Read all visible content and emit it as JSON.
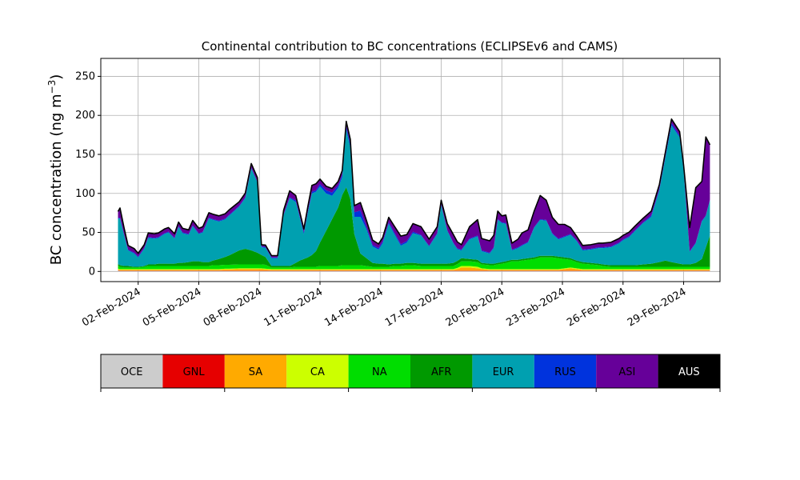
{
  "chart_data": {
    "type": "area",
    "stacked": true,
    "title": "Continental contribution to BC concentrations (ECLIPSEv6 and CAMS)",
    "xlabel": "",
    "ylabel_prefix": "BC concentration (ng m",
    "ylabel_sup": "−3",
    "ylabel_suffix": ")",
    "x_unit": "days since 01-Feb-2024 00:00",
    "xlim": [
      -0.85,
      29.8
    ],
    "ylim": [
      -13,
      273
    ],
    "grid": true,
    "yticks": [
      0,
      50,
      100,
      150,
      200,
      250
    ],
    "xticks": [
      {
        "day": 1,
        "label": "02-Feb-2024"
      },
      {
        "day": 4,
        "label": "05-Feb-2024"
      },
      {
        "day": 7,
        "label": "08-Feb-2024"
      },
      {
        "day": 10,
        "label": "11-Feb-2024"
      },
      {
        "day": 13,
        "label": "14-Feb-2024"
      },
      {
        "day": 16,
        "label": "17-Feb-2024"
      },
      {
        "day": 19,
        "label": "20-Feb-2024"
      },
      {
        "day": 22,
        "label": "23-Feb-2024"
      },
      {
        "day": 25,
        "label": "26-Feb-2024"
      },
      {
        "day": 28,
        "label": "29-Feb-2024"
      }
    ],
    "total_curve_color": "#000000",
    "x": [
      0.0,
      0.1,
      0.3,
      0.5,
      0.8,
      1.0,
      1.3,
      1.5,
      1.8,
      2.0,
      2.3,
      2.5,
      2.8,
      3.0,
      3.2,
      3.5,
      3.7,
      4.0,
      4.2,
      4.5,
      4.7,
      5.0,
      5.3,
      5.5,
      6.0,
      6.3,
      6.6,
      6.9,
      7.1,
      7.3,
      7.6,
      7.9,
      8.2,
      8.5,
      8.8,
      9.0,
      9.2,
      9.4,
      9.6,
      9.8,
      10.0,
      10.3,
      10.6,
      10.9,
      11.1,
      11.3,
      11.5,
      11.7,
      12.0,
      12.3,
      12.6,
      12.9,
      13.1,
      13.4,
      13.7,
      14.0,
      14.3,
      14.6,
      15.0,
      15.4,
      15.8,
      16.0,
      16.3,
      16.6,
      16.8,
      17.0,
      17.4,
      17.8,
      18.0,
      18.4,
      18.6,
      18.8,
      19.0,
      19.2,
      19.5,
      19.8,
      20.0,
      20.3,
      20.6,
      20.9,
      21.2,
      21.5,
      21.8,
      22.1,
      22.4,
      22.7,
      23.0,
      23.4,
      23.8,
      24.0,
      24.4,
      24.8,
      25.0,
      25.3,
      25.6,
      26.0,
      26.4,
      26.8,
      27.1,
      27.4,
      27.8,
      28.0,
      28.3,
      28.6,
      28.9,
      29.1,
      29.3
    ],
    "series": [
      {
        "name": "OCE",
        "color": "#cccccc",
        "values": [
          1,
          0.5,
          0.5,
          0.5,
          0.5,
          0.5,
          0.5,
          0.5,
          0.5,
          0.5,
          0.5,
          0.5,
          0.5,
          0.5,
          0.5,
          0.5,
          0.5,
          0.5,
          0.5,
          0.5,
          0.5,
          0.5,
          0.5,
          0.5,
          0.5,
          0.5,
          0.5,
          0.5,
          0.5,
          0.5,
          0.5,
          0.5,
          0.5,
          0.5,
          0.5,
          0.5,
          0.5,
          0.5,
          0.5,
          0.5,
          0.5,
          0.5,
          0.5,
          0.5,
          0.5,
          0.5,
          0.5,
          0.5,
          0.5,
          0.5,
          0.5,
          0.5,
          0.5,
          0.5,
          0.5,
          0.5,
          0.5,
          0.5,
          0.5,
          0.5,
          0.5,
          0.5,
          0.5,
          0.5,
          0.5,
          0.5,
          0.5,
          0.5,
          0.5,
          0.5,
          0.5,
          0.5,
          0.5,
          0.5,
          0.5,
          0.5,
          0.5,
          0.5,
          0.5,
          0.5,
          0.5,
          0.5,
          0.5,
          0.5,
          0.5,
          0.5,
          0.5,
          0.5,
          0.5,
          0.5,
          0.5,
          0.5,
          0.5,
          0.5,
          0.5,
          0.5,
          0.5,
          0.5,
          0.5,
          0.5,
          0.5,
          0.5,
          0.5,
          0.5,
          0.5,
          0.5,
          0.5
        ]
      },
      {
        "name": "GNL",
        "color": "#e60000",
        "values": [
          0.5,
          0.5,
          0.5,
          0.5,
          0.5,
          0.5,
          0.5,
          0.5,
          0.5,
          0.5,
          0.5,
          0.5,
          0.5,
          0.5,
          0.5,
          0.5,
          0.5,
          0.5,
          0.5,
          0.5,
          0.5,
          0.5,
          0.5,
          0.5,
          0.5,
          0.5,
          0.5,
          0.5,
          0.5,
          0.5,
          0.5,
          0.5,
          0.5,
          0.5,
          0.5,
          0.5,
          0.5,
          0.5,
          0.5,
          0.5,
          0.5,
          0.5,
          0.5,
          0.5,
          0.5,
          0.5,
          0.5,
          0.5,
          0.5,
          0.5,
          0.5,
          0.5,
          0.5,
          0.5,
          0.5,
          0.5,
          0.5,
          0.5,
          0.5,
          0.5,
          0.5,
          0.5,
          0.5,
          0.5,
          0.5,
          0.5,
          0.5,
          0.5,
          0.5,
          0.5,
          0.5,
          0.5,
          0.5,
          0.5,
          0.5,
          0.5,
          0.5,
          0.5,
          0.5,
          0.5,
          0.5,
          0.5,
          0.5,
          0.5,
          0.5,
          0.5,
          0.5,
          0.5,
          0.5,
          0.5,
          0.5,
          0.5,
          0.5,
          0.5,
          0.5,
          0.5,
          0.5,
          0.5,
          0.5,
          0.5,
          0.5,
          0.5,
          0.5,
          0.5,
          0.5,
          0.5,
          0.5
        ]
      },
      {
        "name": "SA",
        "color": "#ffaa00",
        "values": [
          1,
          1,
          1,
          1,
          1,
          1,
          1,
          1,
          1,
          1,
          1,
          1,
          1,
          1,
          1,
          1,
          1,
          1,
          1,
          1,
          1,
          1,
          1.5,
          1.5,
          2,
          2,
          2,
          2,
          2,
          1.5,
          1,
          1,
          1,
          1,
          1,
          1,
          1,
          1,
          1,
          1,
          1,
          1,
          1,
          1,
          1,
          1,
          1,
          1,
          1,
          1,
          1,
          1,
          1,
          1,
          1,
          1,
          1,
          1,
          1,
          1,
          1,
          1,
          1,
          1,
          2,
          4,
          4,
          3,
          2,
          1,
          1,
          1,
          1,
          1,
          1,
          1,
          1,
          1,
          1,
          1,
          1,
          1,
          1,
          2,
          3,
          2,
          1,
          1,
          1,
          1,
          1,
          1,
          1,
          1,
          1,
          1,
          1,
          1,
          1,
          1,
          1,
          1,
          1,
          1,
          1,
          1,
          1
        ]
      },
      {
        "name": "CA",
        "color": "#ccff00",
        "values": [
          1,
          1,
          1,
          1,
          1,
          1,
          1,
          1,
          1,
          1,
          1,
          1,
          1,
          1,
          1,
          1,
          1,
          1,
          1,
          1,
          1,
          1,
          1,
          1,
          1,
          1,
          1,
          1,
          1,
          1,
          1,
          1,
          1,
          1,
          1,
          1,
          1,
          1,
          1,
          1,
          1,
          1,
          1,
          1,
          1,
          1,
          1,
          1,
          1,
          1,
          1,
          1,
          1,
          1,
          1,
          1,
          1,
          1,
          1,
          1,
          1,
          1,
          1,
          1,
          1.5,
          2,
          2,
          2,
          1,
          1,
          1,
          1,
          1,
          1,
          1,
          1,
          1,
          1,
          1,
          1,
          1,
          1,
          1,
          1,
          1,
          1,
          1,
          1,
          1,
          1,
          1,
          1,
          1,
          1,
          1,
          1,
          1,
          1,
          1,
          1,
          1,
          1,
          1,
          1,
          1,
          1,
          1
        ]
      },
      {
        "name": "NA",
        "color": "#00dd00",
        "values": [
          4,
          3,
          2,
          2,
          2,
          2,
          3,
          4,
          4,
          4,
          4,
          4,
          4,
          4,
          4,
          4,
          4,
          4,
          4,
          4,
          5,
          5,
          5,
          5,
          5,
          5,
          5,
          5,
          5,
          5,
          2,
          2,
          2,
          2,
          3,
          3,
          3,
          3,
          3,
          3,
          4,
          4,
          4,
          4,
          5,
          5,
          5,
          5,
          5,
          4,
          3,
          3,
          3,
          3,
          4,
          4,
          5,
          5,
          4,
          4,
          4,
          4,
          4,
          4,
          5,
          6,
          6,
          6,
          5,
          5,
          5,
          6,
          7,
          8,
          10,
          10,
          11,
          12,
          13,
          15,
          15,
          15,
          14,
          12,
          10,
          8,
          7,
          6,
          5,
          4,
          3,
          3,
          3,
          3,
          3,
          3,
          3,
          3,
          3,
          3,
          3,
          3,
          3,
          3,
          3,
          3,
          3
        ]
      },
      {
        "name": "AFR",
        "color": "#009900",
        "values": [
          2,
          2,
          2,
          2,
          1,
          1,
          1,
          2,
          2,
          3,
          3,
          3,
          3,
          4,
          4,
          5,
          6,
          6,
          5,
          5,
          6,
          8,
          10,
          12,
          18,
          20,
          18,
          15,
          12,
          10,
          2,
          2,
          2,
          2,
          5,
          8,
          10,
          12,
          15,
          20,
          30,
          45,
          60,
          75,
          90,
          100,
          85,
          40,
          15,
          10,
          5,
          4,
          4,
          3,
          3,
          3,
          3,
          3,
          3,
          3,
          3,
          3,
          3,
          4,
          4,
          4,
          3,
          3,
          2,
          2,
          2,
          2,
          2,
          2,
          2,
          2,
          2,
          2,
          2,
          2,
          2,
          2,
          2,
          2,
          2,
          2,
          2,
          2,
          2,
          2,
          2,
          2,
          2,
          2,
          2,
          3,
          4,
          6,
          8,
          6,
          4,
          3,
          3,
          5,
          10,
          25,
          40
        ]
      },
      {
        "name": "EUR",
        "color": "#00a0b0",
        "values": [
          58,
          60,
          40,
          20,
          17,
          12,
          22,
          34,
          33,
          33,
          38,
          40,
          32,
          46,
          38,
          35,
          45,
          35,
          38,
          56,
          52,
          48,
          48,
          51,
          56,
          65,
          105,
          90,
          10,
          12,
          10,
          10,
          65,
          87,
          78,
          55,
          32,
          57,
          79,
          76,
          72,
          48,
          30,
          25,
          23,
          74,
          66,
          22,
          47,
          37,
          21,
          18,
          26,
          52,
          37,
          23,
          26,
          38,
          36,
          22,
          38,
          75,
          42,
          25,
          15,
          10,
          25,
          30,
          15,
          13,
          20,
          55,
          50,
          48,
          12,
          15,
          17,
          20,
          38,
          46,
          45,
          28,
          22,
          26,
          30,
          25,
          15,
          17,
          20,
          21,
          23,
          28,
          32,
          36,
          44,
          53,
          60,
          92,
          132,
          175,
          162,
          120,
          16,
          25,
          48,
          40,
          45
        ]
      },
      {
        "name": "RUS",
        "color": "#0033dd",
        "values": [
          1,
          1,
          1,
          1,
          1,
          1,
          1,
          1,
          1,
          1,
          1,
          1,
          1,
          1,
          1,
          1,
          1,
          1,
          1,
          1,
          1,
          1,
          1,
          1,
          1,
          1,
          1,
          1,
          1,
          1,
          1,
          1,
          1,
          1,
          2,
          2,
          2,
          2,
          2,
          2,
          3,
          4,
          4,
          3,
          3,
          4,
          4,
          6,
          8,
          3,
          2,
          2,
          2,
          2,
          2,
          2,
          2,
          2,
          1,
          1,
          1,
          1,
          1,
          1,
          1,
          1,
          1,
          1,
          1,
          1,
          1,
          1,
          1,
          1,
          1,
          1,
          1,
          1,
          1,
          1,
          1,
          1,
          1,
          1,
          1,
          1,
          1,
          1,
          1,
          1,
          1,
          1,
          1,
          1,
          1,
          1,
          2,
          2,
          2,
          3,
          2,
          2,
          1,
          1,
          1,
          1,
          1
        ]
      },
      {
        "name": "ASI",
        "color": "#660099",
        "values": [
          8,
          12,
          8,
          5,
          5,
          4,
          4,
          5,
          5,
          5,
          5,
          5,
          5,
          5,
          5,
          5,
          6,
          6,
          6,
          6,
          6,
          6,
          6,
          6,
          5,
          5,
          5,
          5,
          2,
          2,
          2,
          2,
          5,
          8,
          6,
          5,
          4,
          6,
          8,
          8,
          6,
          5,
          5,
          5,
          5,
          6,
          6,
          8,
          10,
          8,
          6,
          5,
          5,
          6,
          8,
          10,
          8,
          10,
          10,
          8,
          8,
          5,
          8,
          10,
          8,
          6,
          15,
          20,
          15,
          15,
          15,
          10,
          8,
          10,
          8,
          10,
          15,
          15,
          20,
          30,
          25,
          20,
          18,
          15,
          8,
          5,
          5,
          5,
          5,
          5,
          5,
          5,
          5,
          5,
          5,
          5,
          5,
          5,
          5,
          5,
          5,
          5,
          30,
          70,
          50,
          100,
          70
        ]
      },
      {
        "name": "AUS",
        "color": "#000000",
        "values": [
          0.3,
          0.3,
          0.3,
          0.3,
          0.3,
          0.3,
          0.3,
          0.3,
          0.3,
          0.3,
          0.3,
          0.3,
          0.3,
          0.3,
          0.3,
          0.3,
          0.3,
          0.3,
          0.3,
          0.3,
          0.3,
          0.3,
          0.3,
          0.3,
          0.3,
          0.3,
          0.3,
          0.3,
          0.3,
          0.3,
          0.3,
          0.3,
          0.3,
          0.3,
          0.3,
          0.3,
          0.3,
          0.3,
          0.3,
          0.3,
          0.3,
          0.3,
          0.3,
          0.3,
          0.3,
          0.3,
          0.3,
          0.3,
          0.3,
          0.3,
          0.3,
          0.3,
          0.3,
          0.3,
          0.3,
          0.3,
          0.3,
          0.3,
          0.3,
          0.3,
          0.3,
          0.3,
          0.3,
          0.3,
          0.3,
          0.3,
          0.3,
          0.3,
          0.3,
          0.3,
          0.3,
          0.3,
          0.3,
          0.3,
          0.3,
          0.3,
          0.3,
          0.3,
          0.3,
          0.3,
          0.3,
          0.3,
          0.3,
          0.3,
          0.3,
          0.3,
          0.3,
          0.3,
          0.3,
          0.3,
          0.3,
          0.3,
          0.3,
          0.3,
          0.3,
          0.3,
          0.3,
          0.3,
          0.3,
          0.3,
          0.3,
          0.3,
          0.3,
          0.3,
          0.3,
          0.3,
          0.3
        ]
      }
    ],
    "colorbar": {
      "labels": [
        "OCE",
        "GNL",
        "SA",
        "CA",
        "NA",
        "AFR",
        "EUR",
        "RUS",
        "ASI",
        "AUS"
      ],
      "colors": [
        "#cccccc",
        "#e60000",
        "#ffaa00",
        "#ccff00",
        "#00dd00",
        "#009900",
        "#00a0b0",
        "#0033dd",
        "#660099",
        "#000000"
      ],
      "label_colors": [
        "#000000",
        "#000000",
        "#000000",
        "#000000",
        "#000000",
        "#000000",
        "#000000",
        "#000000",
        "#000000",
        "#ffffff"
      ]
    }
  }
}
